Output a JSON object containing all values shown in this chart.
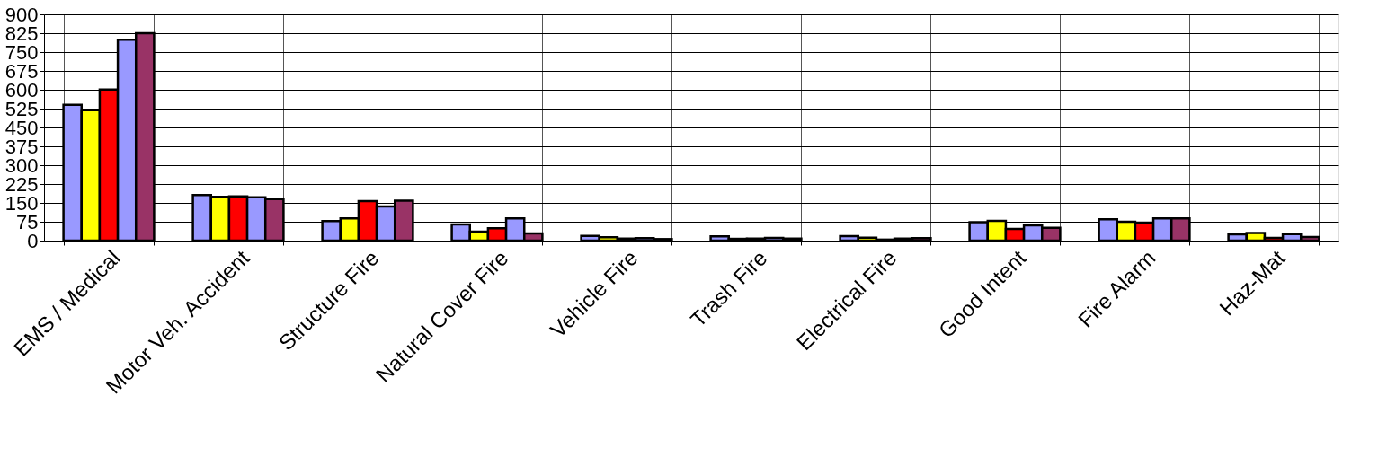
{
  "chart_data": {
    "type": "bar",
    "categories": [
      "EMS / Medical",
      "Motor Veh. Accident",
      "Structure Fire",
      "Natural Cover Fire",
      "Vehicle Fire",
      "Trash Fire",
      "Electrical Fire",
      "Good Intent",
      "Fire Alarm",
      "Haz-Mat"
    ],
    "series": [
      {
        "color": "#9999ff",
        "values": [
          540,
          181,
          78,
          64,
          19,
          17,
          18,
          73,
          85,
          25
        ]
      },
      {
        "color": "#ffff00",
        "values": [
          519,
          174,
          88,
          36,
          13,
          7,
          12,
          79,
          75,
          30
        ]
      },
      {
        "color": "#ff0000",
        "values": [
          601,
          176,
          157,
          49,
          8,
          8,
          4,
          46,
          71,
          11
        ]
      },
      {
        "color": "#9999ff",
        "values": [
          799,
          172,
          136,
          88,
          10,
          11,
          8,
          61,
          88,
          26
        ]
      },
      {
        "color": "#993366",
        "values": [
          825,
          165,
          159,
          29,
          6,
          8,
          10,
          51,
          88,
          14
        ]
      }
    ],
    "ylim": [
      0,
      900
    ],
    "yticks": [
      0,
      75,
      150,
      225,
      300,
      375,
      450,
      525,
      600,
      675,
      750,
      825,
      900
    ],
    "grid": true
  }
}
